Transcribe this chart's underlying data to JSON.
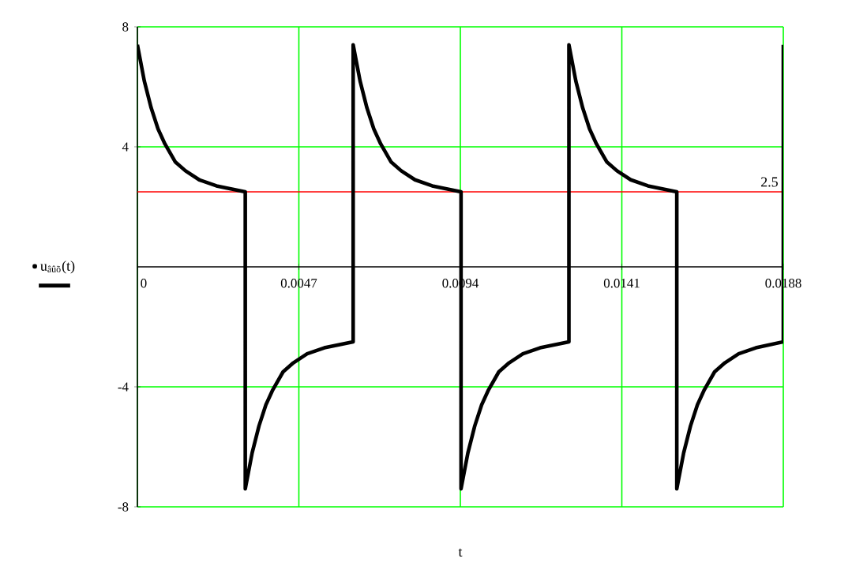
{
  "chart_data": {
    "type": "line",
    "x": [
      0,
      0.0002,
      0.0004,
      0.0006,
      0.0008,
      0.0011,
      0.0014,
      0.0018,
      0.0023,
      0.00314,
      0.00314,
      0.00334,
      0.00354,
      0.00374,
      0.00394,
      0.00424,
      0.00454,
      0.00494,
      0.00544,
      0.00628,
      0.00628,
      0.00648,
      0.00668,
      0.00688,
      0.00708,
      0.00738,
      0.00768,
      0.00808,
      0.00858,
      0.00942,
      0.00942,
      0.00962,
      0.00982,
      0.01002,
      0.01022,
      0.01052,
      0.01082,
      0.01122,
      0.01172,
      0.01256,
      0.01256,
      0.01276,
      0.01296,
      0.01316,
      0.01336,
      0.01366,
      0.01396,
      0.01436,
      0.01486,
      0.0157,
      0.0157,
      0.0159,
      0.0161,
      0.0163,
      0.0165,
      0.0168,
      0.0171,
      0.0175,
      0.018,
      0.0188,
      0.0188
    ],
    "series": [
      {
        "name": "u$_{âûõ}$(t)",
        "color": "#000000",
        "values": [
          7.4,
          6.2,
          5.3,
          4.6,
          4.1,
          3.5,
          3.2,
          2.9,
          2.7,
          2.5,
          -7.4,
          -6.2,
          -5.3,
          -4.6,
          -4.1,
          -3.5,
          -3.2,
          -2.9,
          -2.7,
          -2.5,
          7.4,
          6.2,
          5.3,
          4.6,
          4.1,
          3.5,
          3.2,
          2.9,
          2.7,
          2.5,
          -7.4,
          -6.2,
          -5.3,
          -4.6,
          -4.1,
          -3.5,
          -3.2,
          -2.9,
          -2.7,
          -2.5,
          7.4,
          6.2,
          5.3,
          4.6,
          4.1,
          3.5,
          3.2,
          2.9,
          2.7,
          2.5,
          -7.4,
          -6.2,
          -5.3,
          -4.6,
          -4.1,
          -3.5,
          -3.2,
          -2.9,
          -2.7,
          -2.5,
          7.4
        ]
      }
    ],
    "legend": "left",
    "xlabel": "t",
    "xlim": [
      0,
      0.0188
    ],
    "ylim": [
      -8,
      8
    ],
    "xticks": [
      0,
      0.0047,
      0.0094,
      0.0141,
      0.0188
    ],
    "yticks": [
      -8,
      -4,
      4,
      8
    ],
    "grid": true,
    "ref_lines": [
      {
        "axis": "y",
        "value": 2.5,
        "label": "2.5",
        "color": "#ff0000"
      }
    ]
  }
}
